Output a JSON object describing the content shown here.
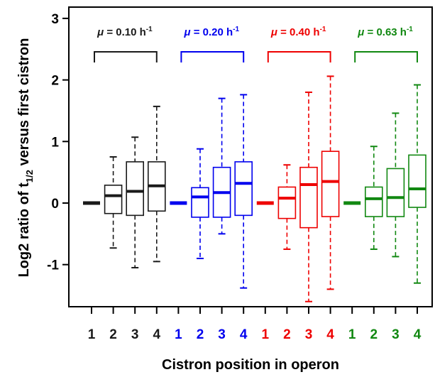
{
  "chart_data": {
    "type": "boxplot",
    "xlabel": "Cistron position in operon",
    "ylabel_main": "Log2 ratio of t",
    "ylabel_sub": "1/2",
    "ylabel_rest": " versus first cistron",
    "ylim": [
      -1.6,
      3.1
    ],
    "yticks": [
      3,
      2,
      1,
      0,
      -1
    ],
    "ytick_labels": [
      "3",
      "2",
      "1",
      "0",
      "-1"
    ],
    "grid": false,
    "groups": [
      {
        "label_mu": "μ",
        "label_value": " = 0.10 h",
        "label_sup": "-1",
        "color": "#1a1a1a",
        "boxes": [
          {
            "position": "1",
            "whisker_low": 0,
            "q1": 0,
            "median": 0,
            "q3": 0,
            "whisker_high": 0
          },
          {
            "position": "2",
            "whisker_low": -0.73,
            "q1": -0.17,
            "median": 0.12,
            "q3": 0.29,
            "whisker_high": 0.75
          },
          {
            "position": "3",
            "whisker_low": -1.05,
            "q1": -0.2,
            "median": 0.19,
            "q3": 0.67,
            "whisker_high": 1.07
          },
          {
            "position": "4",
            "whisker_low": -0.95,
            "q1": -0.13,
            "median": 0.28,
            "q3": 0.67,
            "whisker_high": 1.57
          }
        ]
      },
      {
        "label_mu": "μ",
        "label_value": " = 0.20 h",
        "label_sup": "-1",
        "color": "#0000ee",
        "boxes": [
          {
            "position": "1",
            "whisker_low": 0,
            "q1": 0,
            "median": 0,
            "q3": 0,
            "whisker_high": 0
          },
          {
            "position": "2",
            "whisker_low": -0.9,
            "q1": -0.23,
            "median": 0.1,
            "q3": 0.25,
            "whisker_high": 0.88
          },
          {
            "position": "3",
            "whisker_low": -0.5,
            "q1": -0.23,
            "median": 0.17,
            "q3": 0.58,
            "whisker_high": 1.7
          },
          {
            "position": "4",
            "whisker_low": -1.38,
            "q1": -0.2,
            "median": 0.32,
            "q3": 0.67,
            "whisker_high": 1.76
          }
        ]
      },
      {
        "label_mu": "μ",
        "label_value": " = 0.40 h",
        "label_sup": "-1",
        "color": "#ee0000",
        "boxes": [
          {
            "position": "1",
            "whisker_low": 0,
            "q1": 0,
            "median": 0,
            "q3": 0,
            "whisker_high": 0
          },
          {
            "position": "2",
            "whisker_low": -0.75,
            "q1": -0.25,
            "median": 0.08,
            "q3": 0.26,
            "whisker_high": 0.62
          },
          {
            "position": "3",
            "whisker_low": -1.6,
            "q1": -0.4,
            "median": 0.3,
            "q3": 0.58,
            "whisker_high": 1.8
          },
          {
            "position": "4",
            "whisker_low": -1.4,
            "q1": -0.22,
            "median": 0.35,
            "q3": 0.84,
            "whisker_high": 2.06
          }
        ]
      },
      {
        "label_mu": "μ",
        "label_value": " = 0.63 h",
        "label_sup": "-1",
        "color": "#118811",
        "boxes": [
          {
            "position": "1",
            "whisker_low": 0,
            "q1": 0,
            "median": 0,
            "q3": 0,
            "whisker_high": 0
          },
          {
            "position": "2",
            "whisker_low": -0.75,
            "q1": -0.22,
            "median": 0.07,
            "q3": 0.26,
            "whisker_high": 0.92
          },
          {
            "position": "3",
            "whisker_low": -0.87,
            "q1": -0.22,
            "median": 0.09,
            "q3": 0.56,
            "whisker_high": 1.46
          },
          {
            "position": "4",
            "whisker_low": -1.3,
            "q1": -0.07,
            "median": 0.23,
            "q3": 0.78,
            "whisker_high": 1.92
          }
        ]
      }
    ]
  }
}
